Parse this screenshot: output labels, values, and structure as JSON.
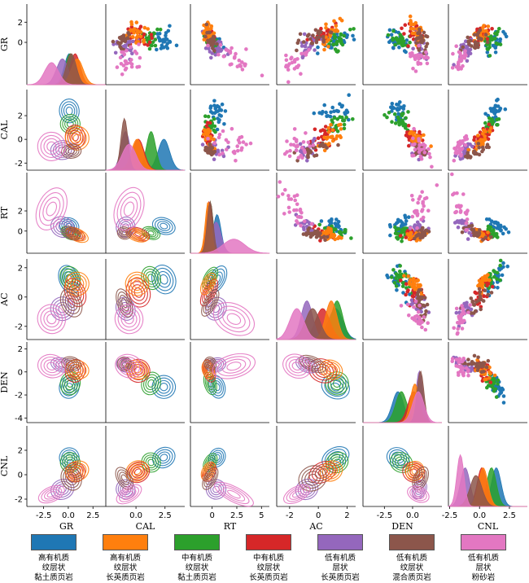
{
  "chart_data": {
    "type": "scatter",
    "layout": "pair-plot (scatter upper, KDE lower, density diagonal)",
    "variables": [
      "GR",
      "CAL",
      "RT",
      "AC",
      "DEN",
      "CNL"
    ],
    "ticks": {
      "GR": {
        "values": [
          -2.5,
          0,
          2.5
        ],
        "labels": [
          "-2.5",
          "0.0",
          "2.5"
        ],
        "range": [
          -4.2,
          3.8
        ]
      },
      "CAL": {
        "values": [
          0,
          2.5
        ],
        "labels": [
          "0.0",
          "2.5"
        ],
        "range": [
          -2.6,
          4.2
        ]
      },
      "RT": {
        "values": [
          0,
          2.5,
          5
        ],
        "labels": [
          "0",
          "2.5",
          "5"
        ],
        "range": [
          -2.2,
          5.8
        ]
      },
      "AC": {
        "values": [
          -2,
          0,
          2
        ],
        "labels": [
          "-2",
          "0",
          "2"
        ],
        "range": [
          -2.9,
          2.6
        ]
      },
      "DEN": {
        "values": [
          -2.5,
          0
        ],
        "labels": [
          "-2.5",
          "0.0"
        ],
        "range": [
          -4.4,
          2.6
        ]
      },
      "CNL": {
        "values": [
          -2.5,
          0,
          2.5
        ],
        "labels": [
          "-2.5",
          "0.0",
          "2.5"
        ],
        "range": [
          -2.6,
          4.0
        ]
      }
    },
    "ytick_values": {
      "GR": [
        0,
        2
      ],
      "CAL": [
        -2,
        0,
        2
      ],
      "RT": [
        0,
        2
      ],
      "AC": [
        -2,
        0,
        2
      ],
      "DEN": [
        -4,
        -2,
        0,
        2
      ],
      "CNL": [
        -2,
        0,
        2
      ]
    },
    "ytick_labels": {
      "GR": [
        "0",
        "2"
      ],
      "CAL": [
        "-2",
        "0",
        "2"
      ],
      "RT": [
        "0",
        "2"
      ],
      "AC": [
        "-2",
        "0",
        "2"
      ],
      "DEN": [
        "-4",
        "-2",
        "0",
        "2"
      ],
      "CNL": [
        "-2",
        "0",
        "2"
      ]
    },
    "series": [
      {
        "name": "高有机质纹层状黏土质页岩",
        "color": "#1f77b4",
        "mean": {
          "GR": 0.1,
          "CAL": 2.4,
          "RT": 0.5,
          "AC": 1.2,
          "DEN": -1.3,
          "CNL": 1.4
        },
        "spread": {
          "GR": 0.5,
          "CAL": 0.5,
          "RT": 0.4,
          "AC": 0.5,
          "DEN": 0.5,
          "CNL": 0.4
        }
      },
      {
        "name": "高有机质纹层状长英质页岩",
        "color": "#ff7f0e",
        "mean": {
          "GR": 0.9,
          "CAL": 0.1,
          "RT": -0.4,
          "AC": 0.9,
          "DEN": 0.2,
          "CNL": 0.3
        },
        "spread": {
          "GR": 0.6,
          "CAL": 0.5,
          "RT": 0.3,
          "AC": 0.4,
          "DEN": 0.4,
          "CNL": 0.4
        }
      },
      {
        "name": "中有机质纹层状黏土质页岩",
        "color": "#2ca02c",
        "mean": {
          "GR": 0.2,
          "CAL": 1.3,
          "RT": -0.2,
          "AC": 1.3,
          "DEN": -1.0,
          "CNL": 1.0
        },
        "spread": {
          "GR": 0.5,
          "CAL": 0.4,
          "RT": 0.3,
          "AC": 0.4,
          "DEN": 0.5,
          "CNL": 0.4
        }
      },
      {
        "name": "中有机质纹层状长英质页岩",
        "color": "#d62728",
        "mean": {
          "GR": 0.7,
          "CAL": 0.2,
          "RT": -0.3,
          "AC": 0.3,
          "DEN": 0.1,
          "CNL": 0.2
        },
        "spread": {
          "GR": 0.5,
          "CAL": 0.5,
          "RT": 0.3,
          "AC": 0.5,
          "DEN": 0.5,
          "CNL": 0.4
        }
      },
      {
        "name": "低有机质层状长英质页岩",
        "color": "#9467bd",
        "mean": {
          "GR": -0.6,
          "CAL": -0.9,
          "RT": 0.4,
          "AC": -0.8,
          "DEN": 0.6,
          "CNL": -1.2
        },
        "spread": {
          "GR": 0.6,
          "CAL": 0.4,
          "RT": 0.5,
          "AC": 0.4,
          "DEN": 0.3,
          "CNL": 0.4
        }
      },
      {
        "name": "低有机质纹层状混合质页岩",
        "color": "#8c564b",
        "mean": {
          "GR": 0.3,
          "CAL": -1.0,
          "RT": -0.2,
          "AC": -0.4,
          "DEN": 0.7,
          "CNL": -0.3
        },
        "spread": {
          "GR": 0.5,
          "CAL": 0.3,
          "RT": 0.3,
          "AC": 0.5,
          "DEN": 0.3,
          "CNL": 0.5
        }
      },
      {
        "name": "低有机质层状粉砂岩",
        "color": "#e377c2",
        "mean": {
          "GR": -1.7,
          "CAL": -0.6,
          "RT": 2.2,
          "AC": -1.5,
          "DEN": 0.5,
          "CNL": -1.6
        },
        "spread": {
          "GR": 0.7,
          "CAL": 0.6,
          "RT": 1.1,
          "AC": 0.5,
          "DEN": 0.5,
          "CNL": 0.3
        }
      }
    ],
    "grid": false,
    "legend_position": "bottom"
  },
  "legend": {
    "items": [
      {
        "line1": "高有机质",
        "line2": "纹层状",
        "line3": "黏土质页岩",
        "color": "#1f77b4"
      },
      {
        "line1": "高有机质",
        "line2": "纹层状",
        "line3": "长英质页岩",
        "color": "#ff7f0e"
      },
      {
        "line1": "中有机质",
        "line2": "纹层状",
        "line3": "黏土质页岩",
        "color": "#2ca02c"
      },
      {
        "line1": "中有机质",
        "line2": "纹层状",
        "line3": "长英质页岩",
        "color": "#d62728"
      },
      {
        "line1": "低有机质",
        "line2": "层状",
        "line3": "长英质页岩",
        "color": "#9467bd"
      },
      {
        "line1": "低有机质",
        "line2": "纹层状",
        "line3": "混合质页岩",
        "color": "#8c564b"
      },
      {
        "line1": "低有机质",
        "line2": "层状",
        "line3": "粉砂岩",
        "color": "#e377c2"
      }
    ]
  }
}
